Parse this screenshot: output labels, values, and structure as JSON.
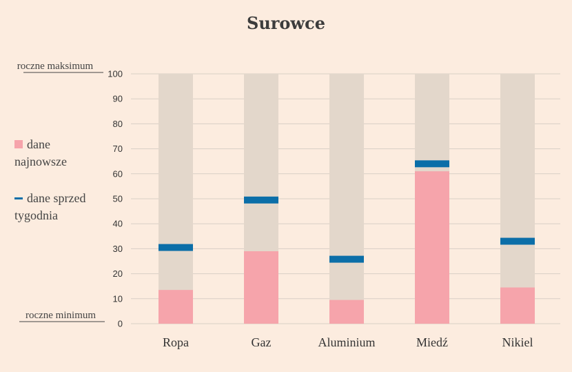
{
  "colors": {
    "background": "#fcecdf",
    "range_band": "#e3d7cb",
    "latest": "#f6a4ab",
    "week_ago": "#0b6ea8",
    "grid": "#d8cfc6",
    "text": "#333333"
  },
  "legend": {
    "latest_label_line1": "dane",
    "latest_label_line2": "najnowsze",
    "week_label_line1": "dane sprzed",
    "week_label_line2": "tygodnia",
    "placement": "left"
  },
  "chart_data": {
    "type": "bar",
    "title": "Surowce",
    "annotations": {
      "top": "roczne maksimum",
      "bottom": "roczne minimum"
    },
    "categories": [
      "Ropa",
      "Gaz",
      "Aluminium",
      "Miedź",
      "Nikiel"
    ],
    "ylim": [
      0,
      100
    ],
    "yticks": [
      0,
      10,
      20,
      30,
      40,
      50,
      60,
      70,
      80,
      90,
      100
    ],
    "grid": true,
    "series": [
      {
        "name": "dane najnowsze",
        "values": [
          13.5,
          29,
          9.5,
          61,
          14.5
        ]
      },
      {
        "name": "dane sprzed tygodnia",
        "values": [
          30.5,
          49.5,
          25.8,
          64,
          33
        ]
      }
    ]
  }
}
